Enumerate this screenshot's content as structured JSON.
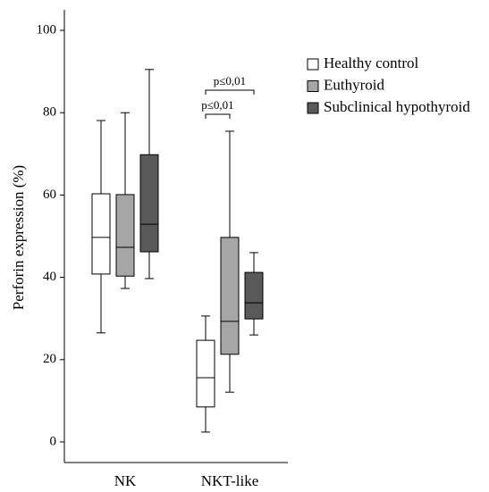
{
  "chart_data": {
    "type": "box",
    "y_label": "Perforin expression (%)",
    "categories": [
      "NK",
      "NKT-like"
    ],
    "series": [
      {
        "name": "Healthy control",
        "color": "#ffffff",
        "values": [
          {
            "min": 26.5,
            "q1": 40.8,
            "median": 49.7,
            "q3": 60.3,
            "max": 78.1
          },
          {
            "min": 2.4,
            "q1": 8.5,
            "median": 15.6,
            "q3": 24.7,
            "max": 30.6
          }
        ]
      },
      {
        "name": "Euthyroid",
        "color": "#a6a6a6",
        "values": [
          {
            "min": 37.3,
            "q1": 40.3,
            "median": 47.3,
            "q3": 60.1,
            "max": 80.0
          },
          {
            "min": 12.1,
            "q1": 21.3,
            "median": 29.3,
            "q3": 49.7,
            "max": 75.5
          }
        ]
      },
      {
        "name": "Subclinical hypothyroid",
        "color": "#595959",
        "values": [
          {
            "min": 39.7,
            "q1": 46.2,
            "median": 52.9,
            "q3": 69.8,
            "max": 90.5
          },
          {
            "min": 26.0,
            "q1": 29.9,
            "median": 33.8,
            "q3": 41.2,
            "max": 46.0
          }
        ]
      }
    ],
    "annotations": [
      "p≤0,01",
      "p≤0,01"
    ],
    "ylim": [
      -5,
      105
    ],
    "yticks": [
      0,
      20,
      40,
      60,
      80,
      100
    ],
    "legend": "right"
  }
}
